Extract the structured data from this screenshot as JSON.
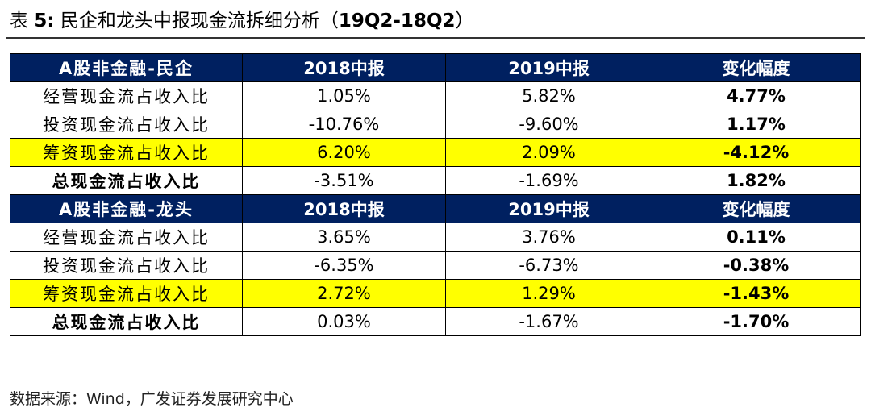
{
  "title": {
    "prefix": "表 ",
    "number": "5:",
    "text": " 民企和龙头中报现金流拆细分析（",
    "period": "19Q2-18Q2",
    "suffix": "）"
  },
  "table": {
    "sections": [
      {
        "header": [
          "A股非金融-民企",
          "2018中报",
          "2019中报",
          "变化幅度"
        ],
        "rows": [
          {
            "label": "经营现金流占收入比",
            "v2018": "1.05%",
            "v2019": "5.82%",
            "change": "4.77%",
            "highlight": false,
            "total": false
          },
          {
            "label": "投资现金流占收入比",
            "v2018": "-10.76%",
            "v2019": "-9.60%",
            "change": "1.17%",
            "highlight": false,
            "total": false
          },
          {
            "label": "筹资现金流占收入比",
            "v2018": "6.20%",
            "v2019": "2.09%",
            "change": "-4.12%",
            "highlight": true,
            "total": false
          },
          {
            "label": "总现金流占收入比",
            "v2018": "-3.51%",
            "v2019": "-1.69%",
            "change": "1.82%",
            "highlight": false,
            "total": true
          }
        ]
      },
      {
        "header": [
          "A股非金融-龙头",
          "2018中报",
          "2019中报",
          "变化幅度"
        ],
        "rows": [
          {
            "label": "经营现金流占收入比",
            "v2018": "3.65%",
            "v2019": "3.76%",
            "change": "0.11%",
            "highlight": false,
            "total": false
          },
          {
            "label": "投资现金流占收入比",
            "v2018": "-6.35%",
            "v2019": "-6.73%",
            "change": "-0.38%",
            "highlight": false,
            "total": false
          },
          {
            "label": "筹资现金流占收入比",
            "v2018": "2.72%",
            "v2019": "1.29%",
            "change": "-1.43%",
            "highlight": true,
            "total": false
          },
          {
            "label": "总现金流占收入比",
            "v2018": "0.03%",
            "v2019": "-1.67%",
            "change": "-1.70%",
            "highlight": false,
            "total": true
          }
        ]
      }
    ]
  },
  "source": "数据来源：Wind，广发证券发展研究中心",
  "colors": {
    "header_bg": "#002060",
    "header_text": "#ffffff",
    "highlight": "#ffff00"
  }
}
